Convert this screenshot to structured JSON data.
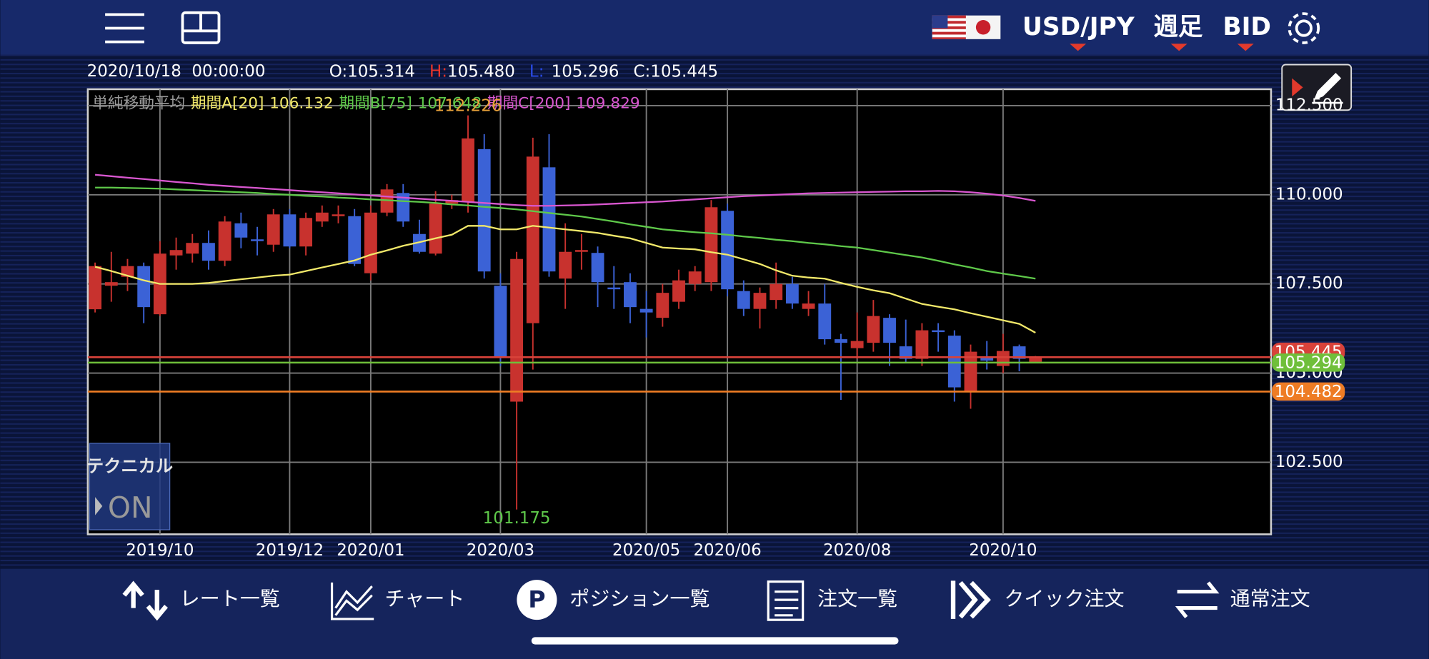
{
  "header": {
    "pair": "USD/JPY",
    "timeframe": "週足",
    "price_type": "BID"
  },
  "info": {
    "datetime": "2020/10/18  00:00:00",
    "open_label": "O:",
    "open": "105.314",
    "high_label": "H:",
    "high": "105.480",
    "low_label": "L:",
    "low": "105.296",
    "close_label": "C:",
    "close": "105.445"
  },
  "technical": {
    "label": "テクニカル",
    "state": "ON"
  },
  "nav": [
    "レート一覧",
    "チャート",
    "ポジション一覧",
    "注文一覧",
    "クイック注文",
    "通常注文"
  ],
  "chart_data": {
    "type": "candlestick",
    "categories": [
      null,
      null,
      null,
      null,
      "2019/10",
      null,
      null,
      null,
      null,
      null,
      null,
      null,
      "2019/12",
      null,
      null,
      null,
      null,
      "2020/01",
      null,
      null,
      null,
      null,
      null,
      null,
      null,
      "2020/03",
      null,
      null,
      null,
      null,
      null,
      null,
      null,
      null,
      "2020/05",
      null,
      null,
      null,
      null,
      "2020/06",
      null,
      null,
      null,
      null,
      null,
      null,
      null,
      "2020/08",
      null,
      null,
      null,
      null,
      null,
      null,
      null,
      null,
      "2020/10",
      null,
      null
    ],
    "open": [
      106.79,
      107.45,
      107.7,
      108.0,
      106.65,
      108.3,
      108.35,
      108.65,
      108.15,
      109.2,
      108.75,
      108.6,
      109.45,
      108.55,
      109.25,
      109.4,
      109.4,
      107.8,
      109.5,
      110.05,
      108.9,
      108.35,
      109.75,
      109.8,
      111.28,
      107.45,
      104.2,
      106.4,
      110.77,
      107.65,
      108.4,
      108.37,
      107.4,
      107.55,
      106.8,
      106.55,
      107.0,
      107.5,
      107.55,
      109.55,
      107.3,
      106.8,
      107.05,
      107.5,
      106.8,
      106.95,
      105.95,
      105.7,
      105.85,
      106.55,
      105.75,
      105.4,
      106.2,
      106.05,
      104.5,
      105.45,
      105.2,
      105.75,
      105.314
    ],
    "high": [
      108.1,
      108.4,
      108.2,
      108.1,
      108.7,
      108.8,
      108.9,
      109.0,
      109.4,
      109.5,
      109.1,
      109.6,
      109.6,
      109.5,
      109.7,
      109.7,
      109.6,
      109.7,
      110.3,
      110.3,
      109.3,
      110.1,
      110.0,
      112.226,
      111.7,
      107.8,
      108.4,
      111.6,
      111.7,
      109.2,
      108.9,
      108.55,
      108.0,
      107.8,
      107.3,
      107.5,
      107.9,
      108.0,
      109.85,
      109.75,
      107.6,
      107.4,
      108.1,
      107.7,
      107.3,
      107.5,
      106.1,
      106.7,
      107.05,
      106.65,
      106.5,
      106.4,
      106.4,
      106.2,
      105.8,
      105.9,
      106.1,
      105.8,
      105.48
    ],
    "low": [
      106.7,
      107.0,
      107.3,
      106.4,
      106.6,
      107.9,
      108.1,
      107.9,
      108.0,
      108.5,
      108.3,
      108.4,
      108.5,
      108.3,
      109.1,
      109.2,
      108.0,
      107.6,
      109.4,
      109.1,
      108.35,
      108.3,
      109.6,
      109.5,
      107.65,
      105.2,
      101.175,
      105.1,
      107.7,
      106.8,
      107.9,
      106.85,
      106.8,
      106.4,
      106.0,
      106.3,
      106.8,
      107.3,
      107.3,
      107.15,
      106.6,
      106.25,
      106.8,
      106.8,
      106.6,
      105.8,
      104.25,
      105.4,
      105.6,
      105.2,
      105.3,
      105.2,
      105.6,
      104.2,
      104.0,
      105.1,
      105.0,
      105.05,
      105.296
    ],
    "close": [
      108.0,
      107.55,
      108.0,
      106.85,
      108.35,
      108.45,
      108.65,
      108.15,
      109.25,
      108.8,
      108.7,
      109.45,
      108.55,
      109.35,
      109.5,
      109.45,
      108.06,
      109.5,
      110.15,
      109.25,
      108.4,
      109.75,
      109.85,
      111.58,
      107.85,
      105.45,
      108.2,
      111.07,
      107.85,
      108.4,
      108.45,
      107.55,
      107.35,
      106.85,
      106.7,
      107.25,
      107.6,
      107.85,
      109.65,
      107.35,
      106.8,
      107.25,
      107.5,
      106.95,
      106.95,
      105.95,
      105.85,
      105.9,
      106.6,
      105.85,
      105.4,
      106.2,
      106.15,
      104.6,
      105.6,
      105.35,
      105.62,
      105.4,
      105.445
    ],
    "up_color": "#c8322e",
    "down_color": "#3b62d6",
    "high_annotation_index": 23,
    "low_annotation_index": 26,
    "indicator_title": "単純移動平均",
    "lines": [
      {
        "name": "期間A[20]",
        "color": "#f2e96a",
        "values": [
          107.98,
          107.86,
          107.73,
          107.6,
          107.5,
          107.5,
          107.5,
          107.53,
          107.58,
          107.63,
          107.68,
          107.73,
          107.76,
          107.86,
          107.96,
          108.06,
          108.16,
          108.32,
          108.44,
          108.57,
          108.67,
          108.78,
          108.88,
          109.13,
          109.13,
          109.03,
          109.03,
          109.13,
          109.08,
          109.03,
          108.98,
          108.93,
          108.85,
          108.78,
          108.65,
          108.52,
          108.49,
          108.47,
          108.39,
          108.32,
          108.19,
          108.06,
          107.88,
          107.73,
          107.68,
          107.65,
          107.53,
          107.42,
          107.32,
          107.24,
          107.09,
          106.94,
          106.86,
          106.79,
          106.68,
          106.58,
          106.48,
          106.38,
          106.132
        ]
      },
      {
        "name": "期間B[75]",
        "color": "#5fc94a",
        "values": [
          110.2,
          110.2,
          110.19,
          110.18,
          110.17,
          110.15,
          110.13,
          110.11,
          110.09,
          110.07,
          110.05,
          110.02,
          110.0,
          109.97,
          109.95,
          109.92,
          109.9,
          109.87,
          109.85,
          109.82,
          109.8,
          109.77,
          109.73,
          109.7,
          109.66,
          109.63,
          109.59,
          109.54,
          109.49,
          109.44,
          109.39,
          109.32,
          109.25,
          109.17,
          109.1,
          109.03,
          108.99,
          108.95,
          108.92,
          108.88,
          108.83,
          108.79,
          108.74,
          108.7,
          108.65,
          108.61,
          108.56,
          108.52,
          108.45,
          108.38,
          108.31,
          108.24,
          108.15,
          108.05,
          107.96,
          107.86,
          107.79,
          107.72,
          107.648
        ]
      },
      {
        "name": "期間C[200]",
        "color": "#d957d0",
        "values": [
          110.56,
          110.52,
          110.48,
          110.44,
          110.4,
          110.36,
          110.32,
          110.28,
          110.25,
          110.22,
          110.19,
          110.16,
          110.13,
          110.1,
          110.07,
          110.04,
          110.01,
          109.98,
          109.95,
          109.92,
          109.89,
          109.86,
          109.83,
          109.8,
          109.77,
          109.74,
          109.71,
          109.69,
          109.69,
          109.7,
          109.71,
          109.73,
          109.75,
          109.77,
          109.79,
          109.81,
          109.84,
          109.87,
          109.9,
          109.93,
          109.96,
          109.98,
          110.0,
          110.02,
          110.04,
          110.05,
          110.06,
          110.07,
          110.08,
          110.09,
          110.1,
          110.1,
          110.11,
          110.1,
          110.07,
          110.03,
          109.98,
          109.91,
          109.829
        ]
      }
    ],
    "price_lines": [
      {
        "value": 105.445,
        "color": "#d8423a"
      },
      {
        "value": 105.294,
        "color": "#6fbf3a"
      },
      {
        "value": 104.482,
        "color": "#ee7c24"
      }
    ],
    "ylim": [
      100.48,
      112.96
    ],
    "yticks": [
      {
        "value": 112.5,
        "label": "112.500"
      },
      {
        "value": 110,
        "label": "110.000"
      },
      {
        "value": 107.5,
        "label": "107.500"
      },
      {
        "value": 105,
        "label": "105.000"
      },
      {
        "value": 102.5,
        "label": "102.500"
      }
    ],
    "grid": true
  }
}
